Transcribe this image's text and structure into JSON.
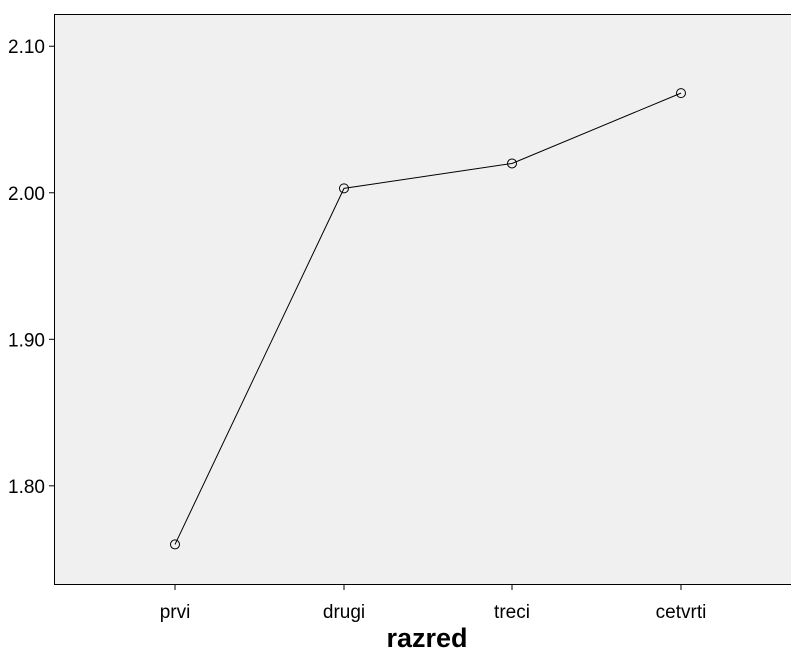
{
  "chart_data": {
    "type": "line",
    "title": "",
    "xlabel": "razred",
    "ylabel": "",
    "categories": [
      "prvi",
      "drugi",
      "treci",
      "cetvrti"
    ],
    "series": [
      {
        "values": [
          1.76,
          2.003,
          2.02,
          2.068
        ]
      }
    ],
    "ylim": [
      1.733,
      2.122
    ],
    "yticks": [
      1.8,
      1.9,
      2.0,
      2.1
    ],
    "ytick_labels": [
      "1.80",
      "1.90",
      "2.00",
      "2.10"
    ],
    "marker": "open-circle",
    "grid": false,
    "legend": "none",
    "colors": {
      "plot_background": "#f0f0f0",
      "line": "#000000",
      "axis": "#000000"
    }
  }
}
